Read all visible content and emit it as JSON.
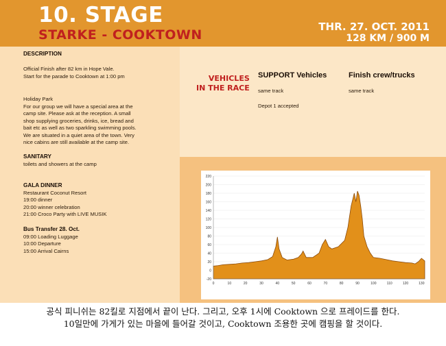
{
  "header": {
    "title": "10. STAGE",
    "subtitle": "STARKE - COOKTOWN",
    "date": "THR. 27. OCT. 2011",
    "distance": "128 KM / 900 M"
  },
  "description": {
    "heading": "DESCRIPTION",
    "lines": [
      "Official Finish after 82 km in Hope Vale.",
      "Start for the parade to Cooktown at 1:00 pm"
    ],
    "holiday": [
      "Holiday Park",
      "For our group we will have a special area at the",
      "camp site. Please ask at the reception. A small",
      "shop supplying groceries, drinks, ice, bread and",
      "bait etc as well as two sparkling swimming pools.",
      "We are situated in a quiet area of the town. Very",
      "nice cabins are still available at the camp site."
    ]
  },
  "sanitary": {
    "heading": "SANITARY",
    "text": "toilets and showers at the camp"
  },
  "gala": {
    "heading": "GALA DINNER",
    "lines": [
      "Restaurant Coconut Resort",
      "19:00 dinner",
      "20:00 winner celebration",
      "21:00 Croco Party with LIVE MUSIK"
    ]
  },
  "bus": {
    "heading": "Bus Transfer 28. Oct.",
    "lines": [
      "09:00 Loading Luggage",
      "10:00 Departure",
      "15:00 Arrival Cairns"
    ]
  },
  "vehicles": {
    "label_line1": "VEHICLES",
    "label_line2": "IN THE RACE",
    "support_heading": "SUPPORT Vehicles",
    "support_line1": "same track",
    "support_line2": "Depot 1 accepted",
    "finish_heading": "Finish crew/trucks",
    "finish_line1": "same track"
  },
  "chart_data": {
    "type": "area",
    "xlim": [
      0,
      132
    ],
    "ylim": [
      -20,
      220
    ],
    "x_ticks": [
      0,
      10,
      20,
      30,
      40,
      50,
      60,
      70,
      80,
      90,
      100,
      110,
      120,
      130
    ],
    "y_ticks": [
      -20,
      0,
      20,
      40,
      60,
      80,
      100,
      120,
      140,
      160,
      180,
      200,
      220
    ],
    "fill_color": "#e2901a",
    "x": [
      0,
      3,
      6,
      10,
      14,
      18,
      22,
      26,
      30,
      34,
      37,
      39,
      40,
      41,
      43,
      46,
      50,
      53,
      55,
      56,
      58,
      62,
      66,
      68,
      70,
      72,
      74,
      78,
      82,
      84,
      86,
      88,
      89,
      90,
      91,
      92,
      93,
      94,
      96,
      98,
      100,
      104,
      108,
      112,
      116,
      120,
      124,
      126,
      128,
      130,
      132
    ],
    "y": [
      10,
      11,
      13,
      14,
      15,
      17,
      18,
      20,
      22,
      25,
      32,
      55,
      78,
      50,
      30,
      24,
      26,
      30,
      38,
      45,
      30,
      30,
      40,
      60,
      72,
      55,
      50,
      55,
      70,
      100,
      150,
      180,
      160,
      185,
      175,
      150,
      120,
      80,
      55,
      40,
      30,
      28,
      25,
      22,
      20,
      18,
      17,
      15,
      20,
      28,
      22
    ]
  },
  "caption": {
    "line1": "공식 피니쉬는 82킬로 지점에서 끝이 난다. 그리고, 오후 1시에 Cooktown 으로 프레이드를 한다.",
    "line2": "10일만에 가게가 있는 마을에 들어갈 것이고, Cooktown 조용한 곳에 캠핑을 할 것이다."
  }
}
